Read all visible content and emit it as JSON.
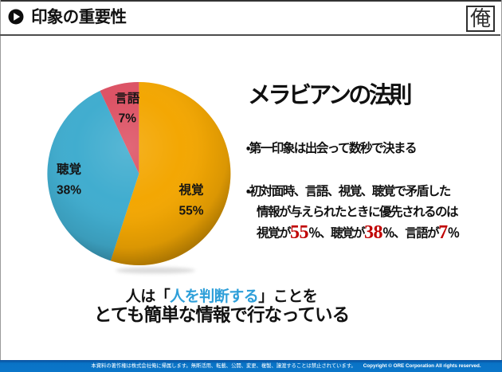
{
  "header": {
    "title": "印象の重要性",
    "logo_char": "俺"
  },
  "chart_data": {
    "type": "pie",
    "title": "",
    "labels": [
      "視覚",
      "聴覚",
      "言語"
    ],
    "values": [
      55,
      38,
      7
    ],
    "value_labels": [
      "55%",
      "38%",
      "7%"
    ],
    "unit": "%",
    "colors": [
      "#f3a703",
      "#41adcf",
      "#dd5365"
    ],
    "start_angle_deg": 0,
    "direction": "clockwise",
    "legend_position": "inside"
  },
  "panel": {
    "heading": "メラビアンの法則",
    "bullet1": "・第一印象は出会って数秒で決まる",
    "bullet2_line1": "・初対面時、言語、視覚、聴覚で矛盾した",
    "bullet2_line2": "情報が与えられたときに優先されるのは",
    "bullet2_line3": {
      "seg1": "視覚が",
      "num1": "55",
      "pct1": "％、",
      "seg2": "聴覚が",
      "num2": "38",
      "pct2": "％、",
      "seg3": "言語が",
      "num3": "7",
      "pct3": "％"
    }
  },
  "message": {
    "line1_prefix": "人は「",
    "line1_highlight": "人を判断する",
    "line1_suffix": "」ことを",
    "line2": "とても簡単な情報で行なっている",
    "highlight_color": "#2e9fd9"
  },
  "footer": {
    "rights_text": "本資料の著作権は株式会社俺に帰属します。無断活用、転載、公開、変更、複製、譲渡することは禁止されています。",
    "copyright": "Copyright © ORE Corporation All rights reserved.",
    "bar_color": "#0a70c2"
  }
}
